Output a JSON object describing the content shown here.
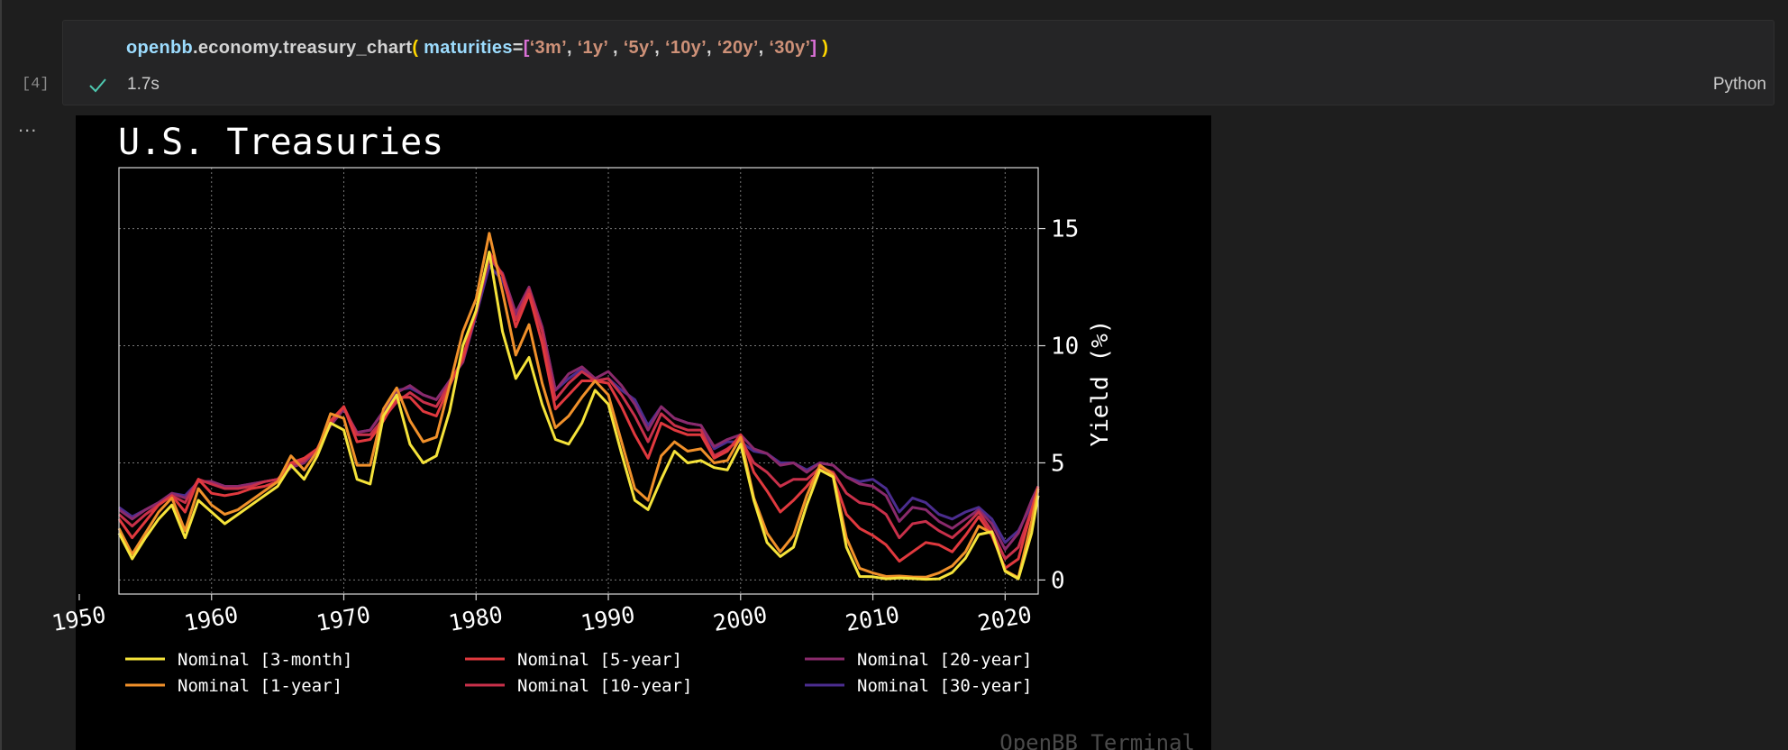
{
  "cell": {
    "execution_count": "[4]",
    "status_icon": "check-icon",
    "exec_time": "1.7s",
    "language": "Python",
    "output_menu": "...",
    "code": {
      "module": "openbb",
      "dot1": ".",
      "path": "economy.treasury_chart",
      "open_paren": "(",
      "param": "maturities",
      "equals": "=",
      "open_bracket": "[",
      "s1": "‘3m’",
      "sep1": ", ",
      "s2": "‘1y’",
      "sep2": " , ",
      "s3": "‘5y’",
      "sep3": ", ",
      "s4": "‘10y’",
      "sep4": ", ",
      "s5": "‘20y’",
      "sep5": ", ",
      "s6": "‘30y’",
      "close_bracket": "]",
      "close_paren": ")"
    }
  },
  "colors": {
    "background": "#000000",
    "axis": "#d9d9d9",
    "grid": "#777777",
    "text": "#ffffff",
    "watermark": "#4a4a4a"
  },
  "chart_data": {
    "type": "line",
    "title": "U.S. Treasuries",
    "xlabel": "",
    "ylabel": "Yield (%)",
    "xlim": [
      1953,
      2022.5
    ],
    "ylim": [
      -0.6,
      17.6
    ],
    "x_ticks": [
      1950,
      1960,
      1970,
      1980,
      1990,
      2000,
      2010,
      2020
    ],
    "y_ticks": [
      0,
      5,
      10,
      15
    ],
    "y_axis_side": "right",
    "grid": true,
    "legend_position": "bottom",
    "watermark": "OpenBB Terminal",
    "x": [
      1953,
      1954,
      1955,
      1956,
      1957,
      1958,
      1959,
      1960,
      1961,
      1962,
      1963,
      1964,
      1965,
      1966,
      1967,
      1968,
      1969,
      1970,
      1971,
      1972,
      1973,
      1974,
      1975,
      1976,
      1977,
      1978,
      1979,
      1980,
      1981,
      1982,
      1983,
      1984,
      1985,
      1986,
      1987,
      1988,
      1989,
      1990,
      1991,
      1992,
      1993,
      1994,
      1995,
      1996,
      1997,
      1998,
      1999,
      2000,
      2001,
      2002,
      2003,
      2004,
      2005,
      2006,
      2007,
      2008,
      2009,
      2010,
      2011,
      2012,
      2013,
      2014,
      2015,
      2016,
      2017,
      2018,
      2019,
      2020,
      2021,
      2022,
      2022.5
    ],
    "series": [
      {
        "name": "Nominal [3-month]",
        "color": "#f5e33a",
        "values": [
          2.0,
          0.9,
          1.8,
          2.6,
          3.2,
          1.8,
          3.4,
          2.9,
          2.4,
          2.8,
          3.2,
          3.6,
          4.0,
          4.9,
          4.3,
          5.3,
          6.7,
          6.4,
          4.3,
          4.1,
          7.0,
          7.9,
          5.8,
          5.0,
          5.3,
          7.2,
          10.0,
          11.5,
          14.0,
          10.6,
          8.6,
          9.5,
          7.5,
          6.0,
          5.8,
          6.7,
          8.1,
          7.5,
          5.4,
          3.4,
          3.0,
          4.3,
          5.5,
          5.0,
          5.1,
          4.8,
          4.7,
          5.8,
          3.4,
          1.6,
          1.0,
          1.4,
          3.2,
          4.7,
          4.4,
          1.4,
          0.15,
          0.14,
          0.05,
          0.09,
          0.06,
          0.03,
          0.05,
          0.32,
          0.93,
          1.94,
          2.06,
          0.37,
          0.05,
          2.0,
          3.6
        ]
      },
      {
        "name": "Nominal [1-year]",
        "color": "#f0902a",
        "values": [
          2.2,
          1.1,
          2.0,
          2.9,
          3.5,
          2.1,
          3.9,
          3.2,
          2.8,
          3.0,
          3.4,
          3.8,
          4.2,
          5.3,
          4.7,
          5.5,
          7.1,
          6.9,
          4.9,
          4.9,
          7.3,
          8.2,
          6.8,
          5.9,
          6.1,
          8.3,
          10.6,
          12.0,
          14.8,
          12.3,
          9.6,
          10.9,
          8.4,
          6.5,
          7.0,
          7.8,
          8.5,
          7.9,
          5.9,
          3.9,
          3.4,
          5.3,
          5.9,
          5.5,
          5.6,
          5.0,
          5.1,
          6.1,
          3.5,
          2.0,
          1.2,
          1.9,
          3.6,
          4.9,
          4.5,
          1.8,
          0.5,
          0.3,
          0.15,
          0.17,
          0.13,
          0.12,
          0.3,
          0.6,
          1.2,
          2.3,
          2.0,
          0.4,
          0.1,
          2.5,
          3.9
        ]
      },
      {
        "name": "Nominal [5-year]",
        "color": "#e0393e",
        "values": [
          2.6,
          1.8,
          2.5,
          3.2,
          3.6,
          2.9,
          4.3,
          3.7,
          3.6,
          3.7,
          3.9,
          4.0,
          4.2,
          5.0,
          5.2,
          5.6,
          6.8,
          7.4,
          5.9,
          6.0,
          6.8,
          7.8,
          7.8,
          7.2,
          7.0,
          8.3,
          9.5,
          11.5,
          14.0,
          13.0,
          10.8,
          12.2,
          10.1,
          7.3,
          7.9,
          8.5,
          8.5,
          8.4,
          7.4,
          6.2,
          5.2,
          6.7,
          6.4,
          6.2,
          6.2,
          5.2,
          5.5,
          6.2,
          4.6,
          3.8,
          2.9,
          3.4,
          4.0,
          4.7,
          4.4,
          2.8,
          2.2,
          1.9,
          1.5,
          0.8,
          1.2,
          1.6,
          1.5,
          1.2,
          1.9,
          2.7,
          1.9,
          0.5,
          0.9,
          3.0,
          4.0
        ]
      },
      {
        "name": "Nominal [10-year]",
        "color": "#c8304a",
        "values": [
          2.8,
          2.3,
          2.8,
          3.2,
          3.6,
          3.3,
          4.3,
          4.1,
          3.9,
          3.9,
          4.0,
          4.2,
          4.3,
          4.9,
          5.1,
          5.6,
          6.7,
          7.4,
          6.2,
          6.2,
          6.9,
          7.6,
          8.0,
          7.6,
          7.4,
          8.4,
          9.4,
          11.4,
          13.9,
          13.0,
          11.1,
          12.4,
          10.6,
          7.7,
          8.4,
          8.9,
          8.5,
          8.6,
          7.9,
          7.0,
          5.9,
          7.1,
          6.6,
          6.4,
          6.4,
          5.3,
          5.6,
          6.0,
          5.0,
          4.6,
          4.0,
          4.3,
          4.3,
          4.8,
          4.6,
          3.7,
          3.3,
          3.2,
          2.8,
          1.8,
          2.4,
          2.5,
          2.1,
          1.8,
          2.3,
          2.9,
          2.1,
          0.9,
          1.4,
          3.0,
          3.8
        ]
      },
      {
        "name": "Nominal [20-year]",
        "color": "#8a2a6c",
        "values": [
          3.0,
          2.6,
          3.0,
          3.3,
          3.7,
          3.5,
          4.2,
          4.2,
          4.0,
          4.0,
          4.1,
          4.2,
          4.3,
          4.8,
          5.0,
          5.6,
          6.6,
          7.3,
          6.3,
          6.4,
          7.2,
          8.0,
          8.3,
          7.9,
          7.7,
          8.5,
          9.3,
          11.4,
          13.7,
          13.1,
          11.4,
          12.5,
          10.8,
          8.1,
          8.8,
          9.1,
          8.6,
          8.9,
          8.3,
          7.5,
          6.4,
          7.4,
          6.9,
          6.7,
          6.6,
          5.7,
          6.0,
          6.2,
          5.6,
          5.4,
          4.9,
          5.0,
          4.6,
          5.0,
          4.9,
          4.4,
          4.1,
          4.0,
          3.6,
          2.5,
          3.1,
          3.0,
          2.5,
          2.2,
          2.6,
          3.0,
          2.4,
          1.3,
          2.0,
          3.4,
          4.0
        ]
      },
      {
        "name": "Nominal [30-year]",
        "color": "#4b2d8f",
        "values": [
          3.1,
          2.7,
          3.0,
          3.3,
          3.7,
          3.6,
          4.2,
          4.2,
          4.0,
          4.0,
          4.1,
          4.2,
          4.3,
          4.8,
          5.0,
          5.6,
          6.6,
          7.3,
          6.3,
          6.4,
          7.2,
          8.1,
          8.2,
          7.9,
          7.7,
          8.5,
          9.3,
          11.3,
          13.4,
          12.8,
          11.2,
          12.4,
          10.8,
          8.1,
          8.6,
          9.0,
          8.5,
          8.6,
          8.1,
          7.7,
          6.6,
          7.4,
          6.9,
          6.7,
          6.6,
          5.6,
          5.9,
          5.9,
          5.5,
          5.4,
          5.0,
          5.0,
          4.7,
          5.0,
          4.9,
          4.4,
          4.2,
          4.3,
          3.9,
          2.9,
          3.5,
          3.3,
          2.8,
          2.6,
          2.9,
          3.1,
          2.6,
          1.6,
          2.1,
          3.2,
          3.9
        ]
      }
    ]
  }
}
